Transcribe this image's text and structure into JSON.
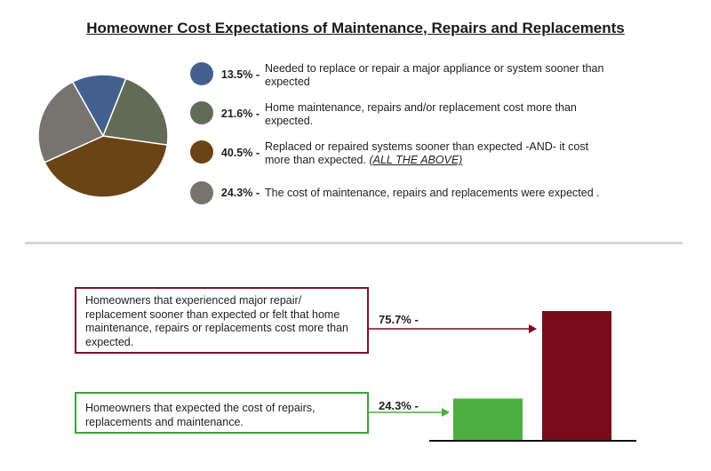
{
  "title": "Homeowner Cost Expectations of Maintenance, Repairs and Replacements",
  "chart_data": [
    {
      "type": "pie",
      "title": "Homeowner Cost Expectations of Maintenance, Repairs and Replacements",
      "slices": [
        {
          "value": 13.5,
          "label": "13.5% -",
          "text": "Needed to replace or repair a major appliance or system sooner than expected",
          "emphasis": "",
          "color": "#44608e"
        },
        {
          "value": 21.6,
          "label": "21.6% -",
          "text": "Home maintenance, repairs and/or replacement cost more than expected.",
          "emphasis": "",
          "color": "#626b57"
        },
        {
          "value": 40.5,
          "label": "40.5% -",
          "text": "Replaced or repaired systems sooner than expected -AND- it cost more than expected.",
          "emphasis": "(ALL THE ABOVE)",
          "color": "#6a4416"
        },
        {
          "value": 24.3,
          "label": "24.3% -",
          "text": "The cost of maintenance, repairs and replacements were expected .",
          "emphasis": "",
          "color": "#777470"
        }
      ]
    },
    {
      "type": "bar",
      "categories": [
        "Homeowners that expected the cost of repairs, replacements and maintenance.",
        "Homeowners that experienced major repair/ replacement sooner than expected or felt that home maintenance, repairs or replacements cost more than expected."
      ],
      "values": [
        24.3,
        75.7
      ],
      "labels": [
        "24.3% -",
        "75.7% -"
      ],
      "colors": [
        "#4bb03f",
        "#7a0b1c"
      ],
      "ylim": [
        0,
        100
      ]
    }
  ]
}
